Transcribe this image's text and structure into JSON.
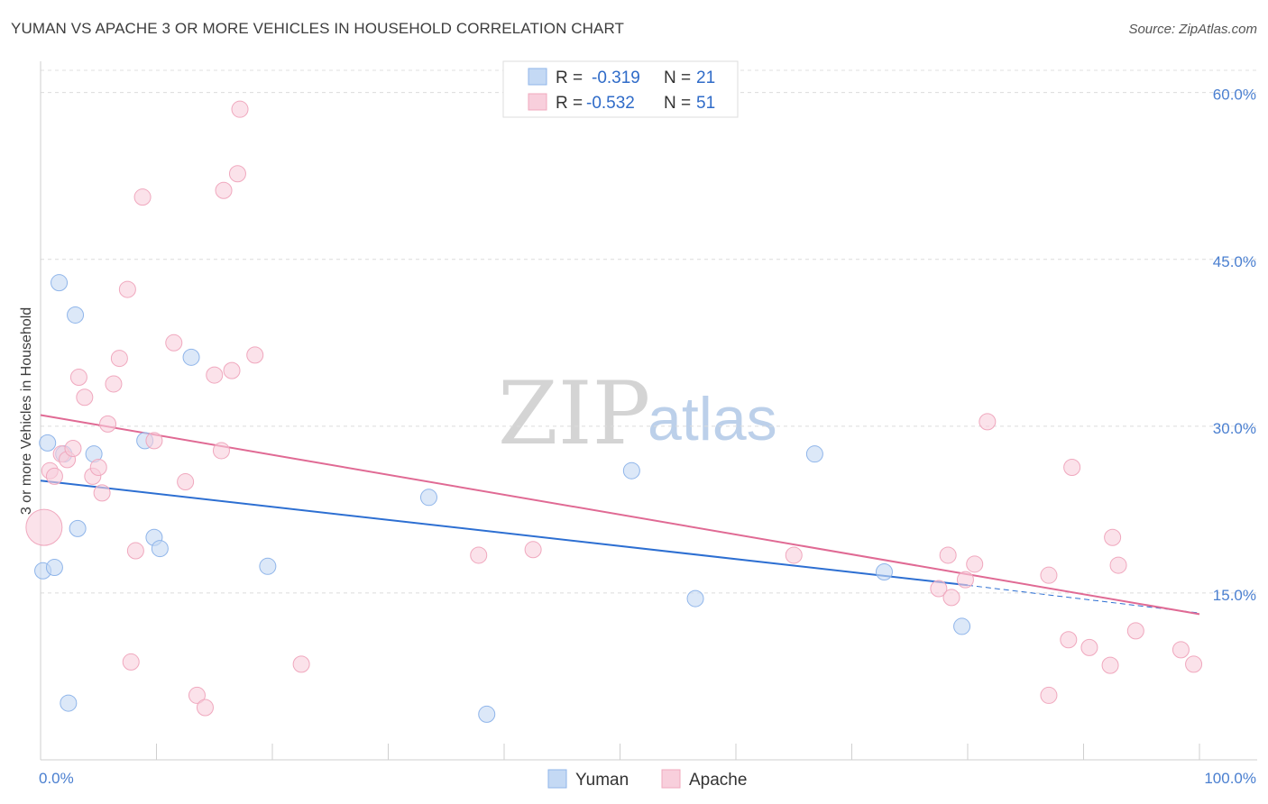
{
  "header": {
    "title": "YUMAN VS APACHE 3 OR MORE VEHICLES IN HOUSEHOLD CORRELATION CHART",
    "source": "Source: ZipAtlas.com"
  },
  "watermark": {
    "zip": "ZIP",
    "atlas": "atlas"
  },
  "chart_data": {
    "type": "scatter",
    "title": "YUMAN VS APACHE 3 OR MORE VEHICLES IN HOUSEHOLD CORRELATION CHART",
    "xlabel": "",
    "ylabel": "3 or more Vehicles in Household",
    "xlim": [
      0,
      100
    ],
    "ylim": [
      0,
      62
    ],
    "x_tick_labels": [
      "0.0%",
      "100.0%"
    ],
    "y_ticks": [
      15,
      30,
      45,
      60
    ],
    "y_tick_labels": [
      "15.0%",
      "30.0%",
      "45.0%",
      "60.0%"
    ],
    "grid": true,
    "legend_position": "top-center",
    "series": [
      {
        "name": "Yuman",
        "color": "#8fb5ea",
        "fill": "#c4d9f4",
        "line_color": "#2d6fd2",
        "r": "-0.319",
        "n": "21",
        "trend": {
          "x0": 0,
          "y0": 25.1,
          "x1": 80,
          "y1": 15.7,
          "dashed_to_x": 100,
          "dashed_to_y": 13.2
        },
        "points": [
          {
            "x": 0.2,
            "y": 17.0,
            "s": 9
          },
          {
            "x": 0.6,
            "y": 28.5,
            "s": 9
          },
          {
            "x": 1.2,
            "y": 17.3,
            "s": 9
          },
          {
            "x": 1.6,
            "y": 42.9,
            "s": 9
          },
          {
            "x": 2.0,
            "y": 27.5,
            "s": 9
          },
          {
            "x": 2.4,
            "y": 5.1,
            "s": 9
          },
          {
            "x": 3.0,
            "y": 40.0,
            "s": 9
          },
          {
            "x": 3.2,
            "y": 20.8,
            "s": 9
          },
          {
            "x": 4.6,
            "y": 27.5,
            "s": 9
          },
          {
            "x": 9.0,
            "y": 28.7,
            "s": 9
          },
          {
            "x": 9.8,
            "y": 20.0,
            "s": 9
          },
          {
            "x": 10.3,
            "y": 19.0,
            "s": 9
          },
          {
            "x": 13.0,
            "y": 36.2,
            "s": 9
          },
          {
            "x": 19.6,
            "y": 17.4,
            "s": 9
          },
          {
            "x": 33.5,
            "y": 23.6,
            "s": 9
          },
          {
            "x": 38.5,
            "y": 4.1,
            "s": 9
          },
          {
            "x": 51.0,
            "y": 26.0,
            "s": 9
          },
          {
            "x": 56.5,
            "y": 14.5,
            "s": 9
          },
          {
            "x": 66.8,
            "y": 27.5,
            "s": 9
          },
          {
            "x": 72.8,
            "y": 16.9,
            "s": 9
          },
          {
            "x": 79.5,
            "y": 12.0,
            "s": 9
          }
        ]
      },
      {
        "name": "Apache",
        "color": "#f0a8be",
        "fill": "#f8cfdc",
        "line_color": "#e06a94",
        "r": "-0.532",
        "n": "51",
        "trend": {
          "x0": 0,
          "y0": 31.0,
          "x1": 100,
          "y1": 13.1
        },
        "points": [
          {
            "x": 0.3,
            "y": 20.9,
            "s": 20
          },
          {
            "x": 0.8,
            "y": 26.0,
            "s": 9
          },
          {
            "x": 1.2,
            "y": 25.5,
            "s": 9
          },
          {
            "x": 1.8,
            "y": 27.5,
            "s": 9
          },
          {
            "x": 2.3,
            "y": 27.0,
            "s": 9
          },
          {
            "x": 2.8,
            "y": 28.0,
            "s": 9
          },
          {
            "x": 3.3,
            "y": 34.4,
            "s": 9
          },
          {
            "x": 3.8,
            "y": 32.6,
            "s": 9
          },
          {
            "x": 4.5,
            "y": 25.5,
            "s": 9
          },
          {
            "x": 5.0,
            "y": 26.3,
            "s": 9
          },
          {
            "x": 5.3,
            "y": 24.0,
            "s": 9
          },
          {
            "x": 5.8,
            "y": 30.2,
            "s": 9
          },
          {
            "x": 6.3,
            "y": 33.8,
            "s": 9
          },
          {
            "x": 6.8,
            "y": 36.1,
            "s": 9
          },
          {
            "x": 7.5,
            "y": 42.3,
            "s": 9
          },
          {
            "x": 7.8,
            "y": 8.8,
            "s": 9
          },
          {
            "x": 8.2,
            "y": 18.8,
            "s": 9
          },
          {
            "x": 8.8,
            "y": 50.6,
            "s": 9
          },
          {
            "x": 9.8,
            "y": 28.7,
            "s": 9
          },
          {
            "x": 11.5,
            "y": 37.5,
            "s": 9
          },
          {
            "x": 12.5,
            "y": 25.0,
            "s": 9
          },
          {
            "x": 13.5,
            "y": 5.8,
            "s": 9
          },
          {
            "x": 14.2,
            "y": 4.7,
            "s": 9
          },
          {
            "x": 15.0,
            "y": 34.6,
            "s": 9
          },
          {
            "x": 15.6,
            "y": 27.8,
            "s": 9
          },
          {
            "x": 15.8,
            "y": 51.2,
            "s": 9
          },
          {
            "x": 16.5,
            "y": 35.0,
            "s": 9
          },
          {
            "x": 17.0,
            "y": 52.7,
            "s": 9
          },
          {
            "x": 17.2,
            "y": 58.5,
            "s": 9
          },
          {
            "x": 18.5,
            "y": 36.4,
            "s": 9
          },
          {
            "x": 22.5,
            "y": 8.6,
            "s": 9
          },
          {
            "x": 37.8,
            "y": 18.4,
            "s": 9
          },
          {
            "x": 42.5,
            "y": 18.9,
            "s": 9
          },
          {
            "x": 65.0,
            "y": 18.4,
            "s": 9
          },
          {
            "x": 77.5,
            "y": 15.4,
            "s": 9
          },
          {
            "x": 78.3,
            "y": 18.4,
            "s": 9
          },
          {
            "x": 78.6,
            "y": 14.6,
            "s": 9
          },
          {
            "x": 79.8,
            "y": 16.2,
            "s": 9
          },
          {
            "x": 80.6,
            "y": 17.6,
            "s": 9
          },
          {
            "x": 81.7,
            "y": 30.4,
            "s": 9
          },
          {
            "x": 87.0,
            "y": 16.6,
            "s": 9
          },
          {
            "x": 87.0,
            "y": 5.8,
            "s": 9
          },
          {
            "x": 88.7,
            "y": 10.8,
            "s": 9
          },
          {
            "x": 89.0,
            "y": 26.3,
            "s": 9
          },
          {
            "x": 90.5,
            "y": 10.1,
            "s": 9
          },
          {
            "x": 92.3,
            "y": 8.5,
            "s": 9
          },
          {
            "x": 92.5,
            "y": 20.0,
            "s": 9
          },
          {
            "x": 93.0,
            "y": 17.5,
            "s": 9
          },
          {
            "x": 94.5,
            "y": 11.6,
            "s": 9
          },
          {
            "x": 98.4,
            "y": 9.9,
            "s": 9
          },
          {
            "x": 99.5,
            "y": 8.6,
            "s": 9
          }
        ]
      }
    ]
  }
}
